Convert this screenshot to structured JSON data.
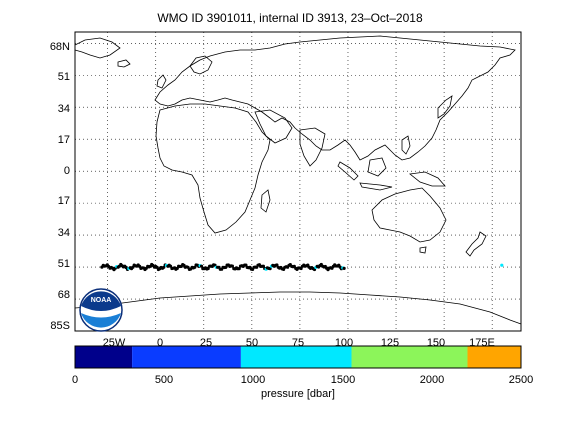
{
  "figure": {
    "title": "WMO ID 3901011, internal ID 3913, 23–Oct–2018",
    "logo_text": "NOAA"
  },
  "map": {
    "lat_ticks": [
      "68N",
      "51",
      "34",
      "17",
      "0",
      "17",
      "34",
      "51",
      "68",
      "85S"
    ],
    "lon_ticks": [
      "25W",
      "0",
      "25",
      "50",
      "75",
      "100",
      "125",
      "150",
      "175E"
    ],
    "lat_values": [
      68,
      51,
      34,
      17,
      0,
      -17,
      -34,
      -51,
      -68,
      -85
    ],
    "lon_values": [
      -25,
      0,
      25,
      50,
      75,
      100,
      125,
      150,
      175
    ],
    "lon_range": [
      -42,
      190
    ],
    "lat_range": [
      -85,
      74
    ],
    "grid": "dotted"
  },
  "colorbar": {
    "label": "pressure [dbar]",
    "ticks": [
      "0",
      "500",
      "1000",
      "1500",
      "2000",
      "2500"
    ],
    "tick_values": [
      0,
      500,
      1000,
      1500,
      2000,
      2500
    ],
    "range": [
      0,
      2500
    ],
    "bands": [
      {
        "from": 0,
        "to": 320,
        "color": "#00008b"
      },
      {
        "from": 320,
        "to": 930,
        "color": "#0a3cff"
      },
      {
        "from": 930,
        "to": 1550,
        "color": "#00e8ff"
      },
      {
        "from": 1550,
        "to": 2200,
        "color": "#8cf55a"
      },
      {
        "from": 2200,
        "to": 2500,
        "color": "#ffa500"
      }
    ]
  },
  "colors": {
    "track": "#000000",
    "coast": "#000000",
    "highlight": "#00e8ff"
  }
}
